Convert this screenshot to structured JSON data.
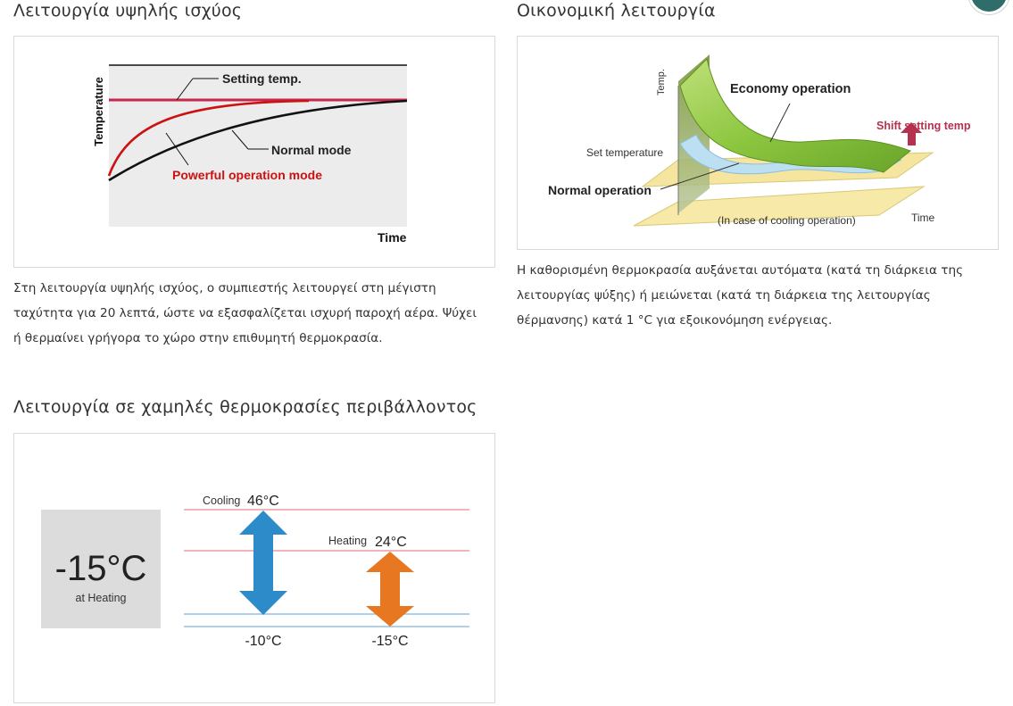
{
  "sections": {
    "powerful": {
      "title": "Λειτουργία υψηλής ισχύος",
      "description": "Στη λειτουργία υψηλής ισχύος, ο συμπιεστής λειτουργεί στη μέγιστη ταχύτητα για 20 λεπτά, ώστε να εξασφαλίζεται ισχυρή παροχή αέρα. Ψύχει ή θερμαίνει γρήγορα το χώρο στην επιθυμητή θερμοκρασία.",
      "diagram": {
        "ylabel": "Temperature",
        "xlabel": "Time",
        "setting_label": "Setting temp.",
        "normal_label": "Normal mode",
        "powerful_label": "Powerful operation mode"
      }
    },
    "economy": {
      "title": "Οικονομική λειτουργία",
      "description": "Η καθορισμένη θερμοκρασία αυξάνεται αυτόματα (κατά τη διάρκεια της λειτουργίας ψύξης) ή μειώνεται (κατά τη διάρκεια της λειτουργίας θέρμανσης) κατά 1 °C για εξοικονόμηση ενέργειας.",
      "diagram": {
        "ylabel": "Temp.",
        "xlabel": "Time",
        "economy_label": "Economy operation",
        "shift_label": "Shift setting temp",
        "set_temp_label": "Set temperature",
        "normal_label": "Normal operation",
        "case_label": "(In case of cooling operation)"
      }
    },
    "low_ambient": {
      "title": "Λειτουργία σε χαμηλές θερμοκρασίες περιβάλλοντος",
      "diagram": {
        "box_value": "-15°C",
        "box_caption": "at Heating",
        "cooling_label": "Cooling",
        "cooling_max": "46°C",
        "cooling_min": "-10°C",
        "heating_label": "Heating",
        "heating_max": "24°C",
        "heating_min": "-15°C"
      }
    }
  },
  "colors": {
    "setting_line": "#c8254a",
    "powerful_curve": "#cc1111",
    "normal_curve": "#111111",
    "chart_bg": "#ececec",
    "economy_green": "#8cc63f",
    "shift_red": "#b5314f",
    "cooling_arrow": "#2e8bc9",
    "heating_arrow": "#e87722",
    "range_line_red": "#e88a94",
    "range_line_blue": "#7fb3dd"
  },
  "icons": {
    "corner_button": "round-action-icon"
  }
}
